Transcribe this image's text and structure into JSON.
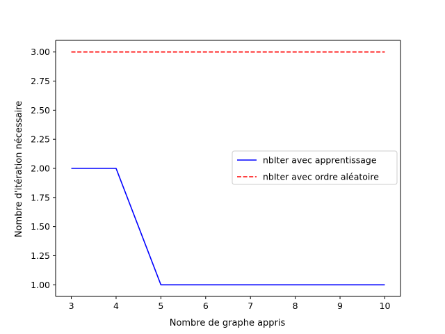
{
  "chart_data": {
    "type": "line",
    "title": "",
    "xlabel": "Nombre de graphe appris",
    "ylabel": "Nombre d'itération nécessaire",
    "xlim": [
      2.65,
      10.35
    ],
    "ylim": [
      0.9,
      3.1
    ],
    "xticks": [
      3,
      4,
      5,
      6,
      7,
      8,
      9,
      10
    ],
    "xtick_labels": [
      "3",
      "4",
      "5",
      "6",
      "7",
      "8",
      "9",
      "10"
    ],
    "yticks": [
      1.0,
      1.25,
      1.5,
      1.75,
      2.0,
      2.25,
      2.5,
      2.75,
      3.0
    ],
    "ytick_labels": [
      "1.00",
      "1.25",
      "1.50",
      "1.75",
      "2.00",
      "2.25",
      "2.50",
      "2.75",
      "3.00"
    ],
    "grid": false,
    "legend_position": "center-right",
    "x": [
      3,
      4,
      5,
      6,
      7,
      8,
      9,
      10
    ],
    "series": [
      {
        "name": "nbIter avec apprentissage",
        "values": [
          2,
          2,
          1,
          1,
          1,
          1,
          1,
          1
        ],
        "color": "#0000ff",
        "style": "solid"
      },
      {
        "name": "nbIter avec ordre aléatoire",
        "values": [
          3,
          3,
          3,
          3,
          3,
          3,
          3,
          3
        ],
        "color": "#ff0000",
        "style": "dashed"
      }
    ]
  }
}
